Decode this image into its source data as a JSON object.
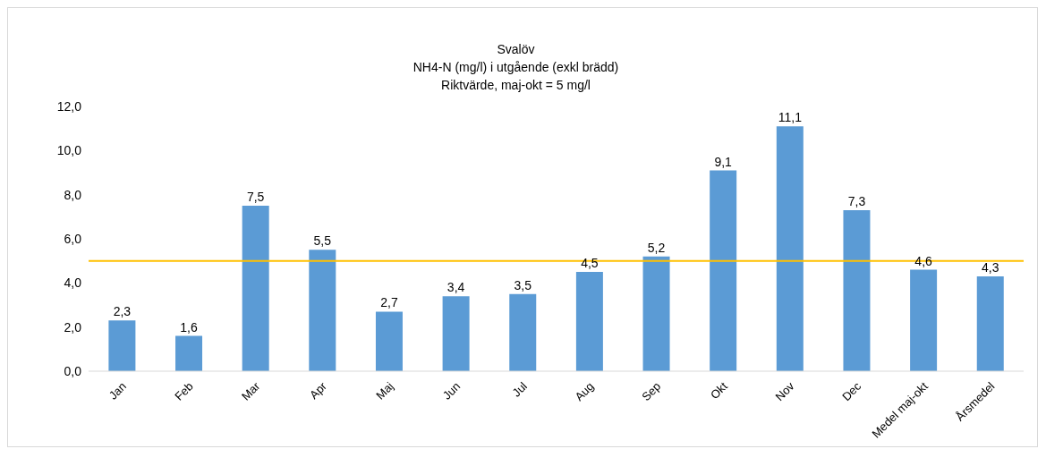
{
  "chart_data": {
    "type": "bar",
    "title": "Svalöv",
    "subtitle": "NH4-N (mg/l) i utgående (exkl brädd)",
    "annotations": [
      "Riktvärde, maj-okt = 5 mg/l"
    ],
    "categories": [
      "Jan",
      "Feb",
      "Mar",
      "Apr",
      "Maj",
      "Jun",
      "Jul",
      "Aug",
      "Sep",
      "Okt",
      "Nov",
      "Dec",
      "Medel maj-okt",
      "Årsmedel"
    ],
    "values": [
      2.3,
      1.6,
      7.5,
      5.5,
      2.7,
      3.4,
      3.5,
      4.5,
      5.2,
      9.1,
      11.1,
      7.3,
      4.6,
      4.3
    ],
    "value_labels": [
      "2,3",
      "1,6",
      "7,5",
      "5,5",
      "2,7",
      "3,4",
      "3,5",
      "4,5",
      "5,2",
      "9,1",
      "11,1",
      "7,3",
      "4,6",
      "4,3"
    ],
    "color": "#5b9bd5",
    "ylim": [
      0,
      12
    ],
    "yticks": [
      {
        "value": 0,
        "label": "0,0"
      },
      {
        "value": 2,
        "label": "2,0"
      },
      {
        "value": 4,
        "label": "4,0"
      },
      {
        "value": 6,
        "label": "6,0"
      },
      {
        "value": 8,
        "label": "8,0"
      },
      {
        "value": 10,
        "label": "10,0"
      },
      {
        "value": 12,
        "label": "12,0"
      }
    ],
    "ref_lines": [
      {
        "axis": "y",
        "value": 5,
        "color": "#ffc000"
      }
    ],
    "grid": false
  }
}
